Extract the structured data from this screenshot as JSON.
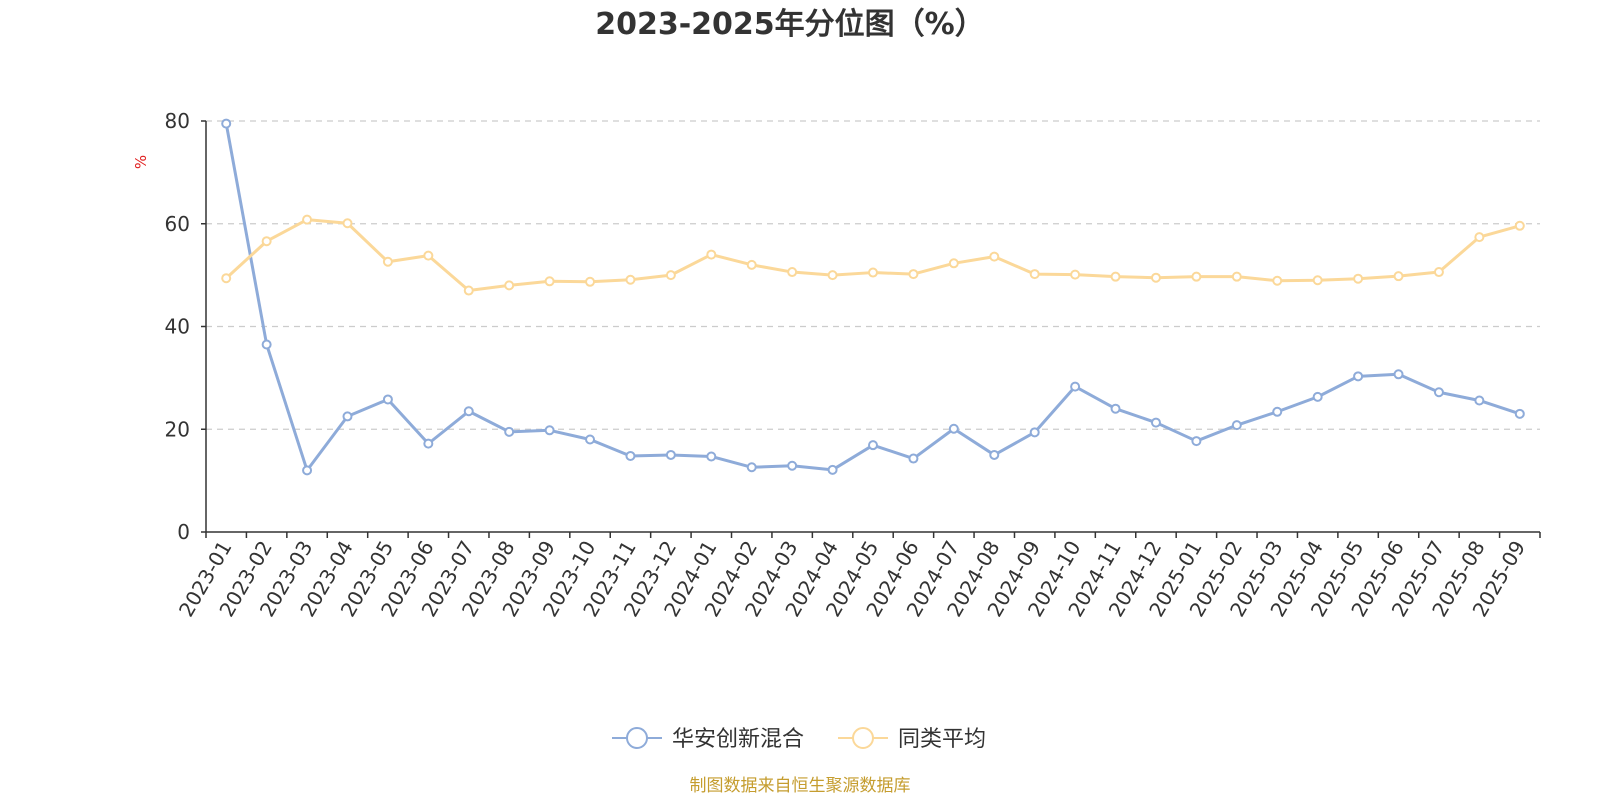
{
  "chart_data": {
    "type": "line",
    "title": "2023-2025年分位图（%）",
    "ylabel": "%",
    "xlabel": "",
    "ylim": [
      0,
      80
    ],
    "yticks": [
      0,
      20,
      40,
      60,
      80
    ],
    "grid": true,
    "legend_position": "bottom-center",
    "categories": [
      "2023-01",
      "2023-02",
      "2023-03",
      "2023-04",
      "2023-05",
      "2023-06",
      "2023-07",
      "2023-08",
      "2023-09",
      "2023-10",
      "2023-11",
      "2023-12",
      "2024-01",
      "2024-02",
      "2024-03",
      "2024-04",
      "2024-05",
      "2024-06",
      "2024-07",
      "2024-08",
      "2024-09",
      "2024-10",
      "2024-11",
      "2024-12",
      "2025-01",
      "2025-02",
      "2025-03",
      "2025-04",
      "2025-05",
      "2025-06",
      "2025-07",
      "2025-08",
      "2025-09"
    ],
    "series": [
      {
        "name": "华安创新混合",
        "color": "#8eabd9",
        "values": [
          79.5,
          36.5,
          12,
          22.5,
          25.8,
          17.2,
          23.5,
          19.5,
          19.8,
          18,
          14.8,
          15,
          14.7,
          12.6,
          12.9,
          12.1,
          16.9,
          14.3,
          20.1,
          15,
          19.4,
          28.3,
          24,
          21.3,
          17.7,
          20.8,
          23.4,
          26.3,
          30.3,
          30.7,
          27.2,
          25.6,
          23
        ]
      },
      {
        "name": "同类平均",
        "color": "#fbd899",
        "values": [
          49.4,
          56.6,
          60.8,
          60.1,
          52.6,
          53.8,
          47,
          48,
          48.8,
          48.7,
          49.1,
          50,
          54,
          52,
          50.6,
          50,
          50.5,
          50.2,
          52.3,
          53.6,
          50.2,
          50.1,
          49.7,
          49.5,
          49.7,
          49.7,
          48.9,
          49,
          49.3,
          49.8,
          50.6,
          57.4,
          59.6
        ]
      }
    ],
    "source_note": "制图数据来自恒生聚源数据库",
    "source_color": "#c59d2f",
    "axis_color": "#333333",
    "grid_color": "#cccccc"
  }
}
